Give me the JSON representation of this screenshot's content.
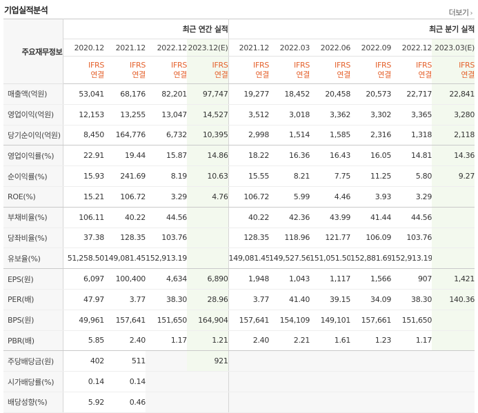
{
  "title": "기업실적분석",
  "more_label": "더보기",
  "header": {
    "row_label": "주요재무정보",
    "annual_group": "최근 연간 실적",
    "quarter_group": "최근 분기 실적",
    "annual_periods": [
      "2020.12",
      "2021.12",
      "2022.12",
      "2023.12(E)"
    ],
    "quarter_periods": [
      "2021.12",
      "2022.03",
      "2022.06",
      "2022.09",
      "2022.12",
      "2023.03(E)"
    ],
    "basis_top": "IFRS",
    "basis_bottom": "연결"
  },
  "rows": [
    {
      "label": "매출액(억원)",
      "values": [
        "53,041",
        "68,176",
        "82,201",
        "97,747",
        "19,277",
        "18,452",
        "20,458",
        "20,573",
        "22,717",
        "22,841"
      ]
    },
    {
      "label": "영업이익(억원)",
      "values": [
        "12,153",
        "13,255",
        "13,047",
        "14,527",
        "3,512",
        "3,018",
        "3,362",
        "3,302",
        "3,365",
        "3,280"
      ]
    },
    {
      "label": "당기순이익(억원)",
      "values": [
        "8,450",
        "164,776",
        "6,732",
        "10,395",
        "2,998",
        "1,514",
        "1,585",
        "2,316",
        "1,318",
        "2,118"
      ]
    },
    {
      "label": "영업이익률(%)",
      "values": [
        "22.91",
        "19.44",
        "15.87",
        "14.86",
        "18.22",
        "16.36",
        "16.43",
        "16.05",
        "14.81",
        "14.36"
      ]
    },
    {
      "label": "순이익률(%)",
      "values": [
        "15.93",
        "241.69",
        "8.19",
        "10.63",
        "15.55",
        "8.21",
        "7.75",
        "11.25",
        "5.80",
        "9.27"
      ]
    },
    {
      "label": "ROE(%)",
      "values": [
        "15.21",
        "106.72",
        "3.29",
        "4.76",
        "106.72",
        "5.99",
        "4.46",
        "3.93",
        "3.29",
        ""
      ]
    },
    {
      "label": "부채비율(%)",
      "values": [
        "106.11",
        "40.22",
        "44.56",
        "",
        "40.22",
        "42.36",
        "43.99",
        "41.44",
        "44.56",
        ""
      ]
    },
    {
      "label": "당좌비율(%)",
      "values": [
        "37.38",
        "128.35",
        "103.76",
        "",
        "128.35",
        "118.96",
        "121.77",
        "106.09",
        "103.76",
        ""
      ]
    },
    {
      "label": "유보율(%)",
      "values": [
        "51,258.50",
        "149,081.45",
        "152,913.19",
        "",
        "149,081.45",
        "149,527.56",
        "151,051.50",
        "152,881.69",
        "152,913.19",
        ""
      ]
    },
    {
      "label": "EPS(원)",
      "values": [
        "6,097",
        "100,400",
        "4,634",
        "6,890",
        "1,948",
        "1,043",
        "1,117",
        "1,566",
        "907",
        "1,421"
      ]
    },
    {
      "label": "PER(배)",
      "values": [
        "47.97",
        "3.77",
        "38.30",
        "28.96",
        "3.77",
        "41.40",
        "39.15",
        "34.09",
        "38.30",
        "140.36"
      ]
    },
    {
      "label": "BPS(원)",
      "values": [
        "49,961",
        "157,641",
        "151,650",
        "164,904",
        "157,641",
        "154,109",
        "149,101",
        "157,661",
        "151,650",
        ""
      ]
    },
    {
      "label": "PBR(배)",
      "values": [
        "5.85",
        "2.40",
        "1.17",
        "1.21",
        "2.40",
        "2.21",
        "1.61",
        "1.23",
        "1.17",
        ""
      ]
    },
    {
      "label": "주당배당금(원)",
      "values": [
        "402",
        "511",
        "",
        "921",
        "",
        "",
        "",
        "",
        "",
        ""
      ]
    },
    {
      "label": "시가배당률(%)",
      "values": [
        "0.14",
        "0.14",
        "",
        "",
        "",
        "",
        "",
        "",
        "",
        ""
      ]
    },
    {
      "label": "배당성향(%)",
      "values": [
        "5.92",
        "0.46",
        "",
        "",
        "",
        "",
        "",
        "",
        "",
        ""
      ]
    }
  ]
}
